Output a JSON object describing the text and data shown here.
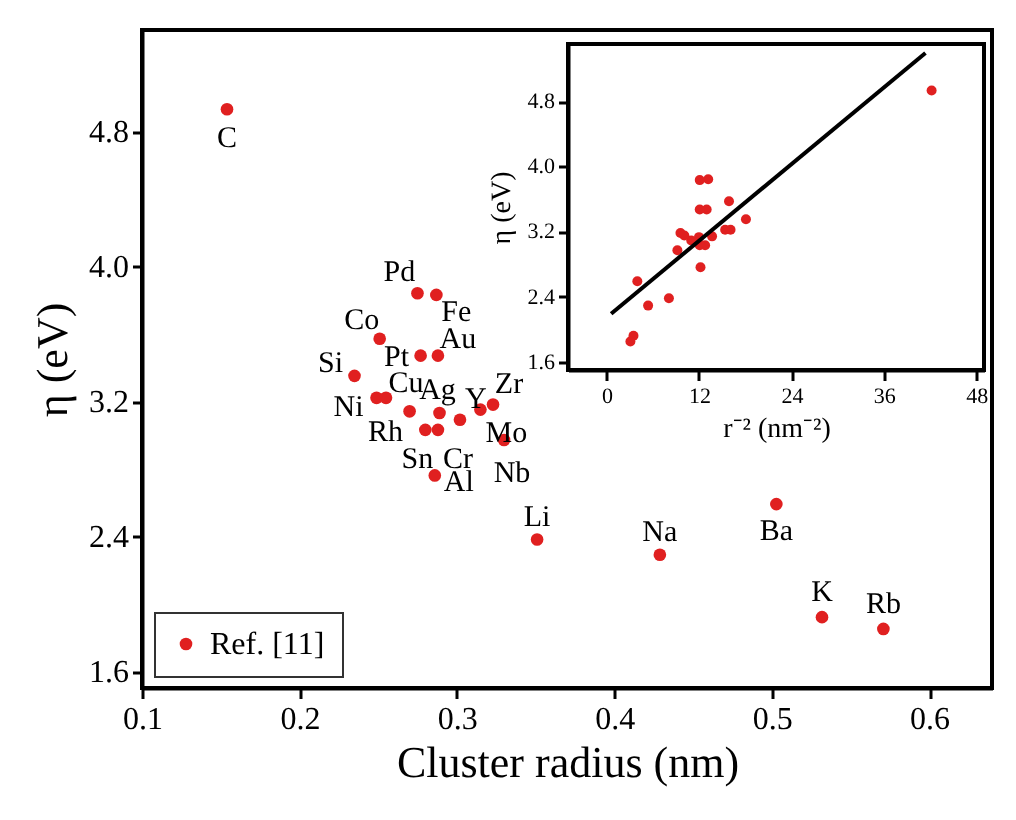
{
  "chart_data": [
    {
      "type": "scatter",
      "xlabel": "Cluster radius (nm)",
      "ylabel": "η (eV)",
      "xlim": [
        0.1,
        0.64
      ],
      "ylim": [
        1.5,
        5.4
      ],
      "xticks": [
        0.1,
        0.2,
        0.3,
        0.4,
        0.5,
        0.6
      ],
      "yticks": [
        1.6,
        2.4,
        3.2,
        {
          "value": 4,
          "label": "4.0"
        },
        4.8
      ],
      "legend": "bottom left",
      "marker": "circle",
      "series": [
        {
          "name": "Ref. [11]",
          "color": "#e02020",
          "x": [
            0.154,
            0.275,
            0.287,
            0.251,
            0.277,
            0.288,
            0.235,
            0.255,
            0.249,
            0.27,
            0.289,
            0.28,
            0.288,
            0.302,
            0.323,
            0.315,
            0.33,
            0.286,
            0.351,
            0.429,
            0.503,
            0.532,
            0.571
          ],
          "values": [
            4.93,
            3.84,
            3.83,
            3.57,
            3.47,
            3.47,
            3.35,
            3.22,
            3.22,
            3.14,
            3.13,
            3.03,
            3.03,
            3.09,
            3.18,
            3.15,
            2.97,
            2.76,
            2.38,
            2.29,
            2.59,
            1.92,
            1.85
          ]
        }
      ],
      "annotations": [
        {
          "text": "C",
          "x": 0.154,
          "y": 4.93
        },
        {
          "text": "Pd",
          "x": 0.275,
          "y": 3.84
        },
        {
          "text": "Fe",
          "x": 0.287,
          "y": 3.83
        },
        {
          "text": "Co",
          "x": 0.251,
          "y": 3.57
        },
        {
          "text": "Pt",
          "x": 0.277,
          "y": 3.47
        },
        {
          "text": "Au",
          "x": 0.288,
          "y": 3.47
        },
        {
          "text": "Si",
          "x": 0.235,
          "y": 3.35
        },
        {
          "text": "Cu",
          "x": 0.255,
          "y": 3.22
        },
        {
          "text": "Ni",
          "x": 0.249,
          "y": 3.22
        },
        {
          "text": "Rh",
          "x": 0.27,
          "y": 3.14
        },
        {
          "text": "Ag",
          "x": 0.289,
          "y": 3.13
        },
        {
          "text": "Sn",
          "x": 0.28,
          "y": 3.03
        },
        {
          "text": "Cr",
          "x": 0.288,
          "y": 3.03
        },
        {
          "text": "Y",
          "x": 0.302,
          "y": 3.09
        },
        {
          "text": "Zr",
          "x": 0.323,
          "y": 3.18
        },
        {
          "text": "Mo",
          "x": 0.315,
          "y": 3.15
        },
        {
          "text": "Nb",
          "x": 0.33,
          "y": 2.97
        },
        {
          "text": "Al",
          "x": 0.286,
          "y": 2.76
        },
        {
          "text": "Li",
          "x": 0.351,
          "y": 2.38
        },
        {
          "text": "Na",
          "x": 0.429,
          "y": 2.29
        },
        {
          "text": "Ba",
          "x": 0.503,
          "y": 2.59
        },
        {
          "text": "K",
          "x": 0.532,
          "y": 1.92
        },
        {
          "text": "Rb",
          "x": 0.571,
          "y": 1.85
        }
      ]
    },
    {
      "type": "scatter",
      "xlabel": "r⁻² (nm⁻²)",
      "ylabel": "η (eV)",
      "xlim": [
        -5,
        49
      ],
      "ylim": [
        1.5,
        5.5
      ],
      "xticks": [
        0,
        12,
        24,
        36,
        48
      ],
      "yticks": [
        1.6,
        2.4,
        3.2,
        {
          "value": 4,
          "label": "4.0"
        },
        4.8
      ],
      "marker": "circle",
      "series": [
        {
          "color": "#e02020",
          "x": [
            42.2,
            13.2,
            12.1,
            15.9,
            13.0,
            12.1,
            18.1,
            15.4,
            16.1,
            13.7,
            12.0,
            12.8,
            12.1,
            11.0,
            9.6,
            10.1,
            9.2,
            12.2,
            8.1,
            5.4,
            4.0,
            3.5,
            3.1
          ],
          "values": [
            4.93,
            3.84,
            3.83,
            3.57,
            3.47,
            3.47,
            3.35,
            3.22,
            3.22,
            3.14,
            3.13,
            3.03,
            3.03,
            3.09,
            3.18,
            3.15,
            2.97,
            2.76,
            2.38,
            2.29,
            2.59,
            1.92,
            1.85
          ]
        },
        {
          "type": "line",
          "marker": "none",
          "line_style": "solid",
          "color": "#000000",
          "x": [
            0.6,
            41.4
          ],
          "values": [
            2.19,
            5.39
          ]
        }
      ]
    }
  ]
}
